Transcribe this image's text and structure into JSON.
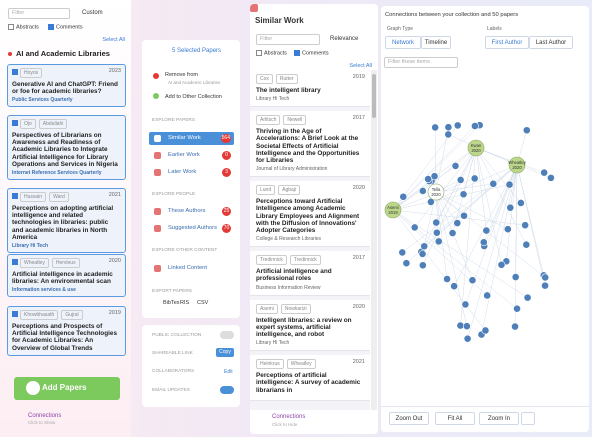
{
  "left": {
    "filter": "Filter",
    "custom": "Custom",
    "abstracts": "Abstracts",
    "comments": "Comments",
    "select_all": "Select All",
    "collection": "AI and Academic Libraries",
    "papers": [
      {
        "authors": [
          "Hoyos"
        ],
        "year": 2023,
        "title": "Generative AI and ChatGPT: Friend or foe for academic libraries?",
        "venue": "Public Services Quarterly"
      },
      {
        "authors": [
          "Ojo",
          "Abdullahi"
        ],
        "title": "Perspectives of Librarians on Awareness and Readiness of Academic Libraries to Integrate Artificial Intelligence for Library Operations and Services in Nigeria",
        "venue": "Internet Reference Services Quarterly"
      },
      {
        "authors": [
          "Hussain",
          "Ward"
        ],
        "year": 2021,
        "title": "Perceptions on adopting artificial intelligence and related technologies in libraries: public and academic libraries in North America",
        "venue": "Library Hi Tech"
      },
      {
        "authors": [
          "Wheatley",
          "Hervieux"
        ],
        "year": 2020,
        "title": "Artificial intelligence in academic libraries: An environmental scan",
        "venue": "Information services & use"
      },
      {
        "authors": [
          "Khowbhasath",
          "Gujral"
        ],
        "year": 2019,
        "title": "Perceptions and Prospects of Artificial Intelligence Technologies for Academic Libraries: An Overview of Global Trends"
      }
    ],
    "add": "Add Papers",
    "connections": "Connections",
    "connections_sub": "Click to Show"
  },
  "actions": {
    "selected": "5 Selected Papers",
    "remove": "Remove from",
    "remove_sub": "AI and Academic Libraries",
    "add_other": "Add to Other Collection",
    "explore_papers": "EXPLORE PAPERS",
    "similar": "Similar Work",
    "similar_n": 564,
    "earlier": "Earlier Work",
    "earlier_n": 0,
    "later": "Later Work",
    "later_n": 3,
    "explore_people": "EXPLORE PEOPLE",
    "authors": "These Authors",
    "authors_n": 25,
    "suggested": "Suggested Authors",
    "suggested_n": 70,
    "explore_other": "EXPLORE OTHER CONTENT",
    "linked": "Linked Content",
    "export": "EXPORT PAPERS",
    "formats": [
      "BibTex",
      "RIS",
      "CSV"
    ],
    "public": "PUBLIC COLLECTION",
    "share": "SHAREABLE LINK",
    "copy": "Copy",
    "collab": "COLLABORATORS",
    "edit": "Edit",
    "email": "EMAIL UPDATES"
  },
  "similar": {
    "title": "Similar Work",
    "filter": "Filter",
    "sort": "Relevance",
    "abstracts": "Abstracts",
    "comments": "Comments",
    "select_all": "Select All",
    "papers": [
      {
        "authors": [
          "Cox",
          "Rutter"
        ],
        "year": 2019,
        "title": "The intelligent library",
        "venue": "Library Hi Tech"
      },
      {
        "authors": [
          "Arlitsch",
          "Newell"
        ],
        "year": 2017,
        "title": "Thriving in the Age of Accelerations: A Brief Look at the Societal Effects of Artificial Intelligence and the Opportunities for Libraries",
        "venue": "Journal of Library Administration"
      },
      {
        "authors": [
          "Lund",
          "Agbaji"
        ],
        "year": 2020,
        "title": "Perceptions toward Artificial Intelligence among Academic Library Employees and Alignment with the Diffusion of Innovations' Adopter Categories",
        "venue": "College & Research Libraries"
      },
      {
        "authors": [
          "Tredinnick",
          "Tredinnick"
        ],
        "year": 2017,
        "title": "Artificial intelligence and professional roles",
        "venue": "Business Information Review"
      },
      {
        "authors": [
          "Asemi",
          "Nowkarizi"
        ],
        "year": 2020,
        "title": "Intelligent libraries: a review on expert systems, artificial intelligence, and robot",
        "venue": "Library Hi Tech"
      },
      {
        "authors": [
          "Heinkrus",
          "Wheatley"
        ],
        "year": 2021,
        "title": "Perceptions of artificial intelligence: A survey of academic librarians in"
      }
    ],
    "connections": "Connections",
    "connections_sub": "Click to Hide"
  },
  "graph": {
    "title": "Connections between your collection and 50 papers",
    "graph_type": "Graph Type",
    "network": "Network",
    "timeline": "Timeline",
    "labels": "Labels",
    "first": "First Author",
    "last": "Last Author",
    "filter": "Filter these items",
    "nodes": [
      {
        "name": "Kwan",
        "year": 2020
      },
      {
        "name": "Wheatley",
        "year": 2020
      },
      {
        "name": "Tella",
        "year": 2020
      },
      {
        "name": "Asemi",
        "year": 2019
      }
    ],
    "zoom_out": "Zoom Out",
    "fit": "Fit All",
    "zoom_in": "Zoom In"
  }
}
